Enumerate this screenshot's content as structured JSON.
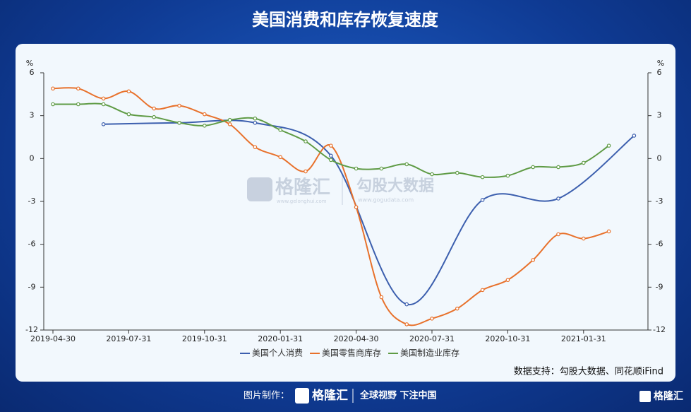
{
  "header": {
    "title": "美国消费和库存恢复速度"
  },
  "chart_data": {
    "type": "line",
    "categories": [
      "2019-04-30",
      null,
      null,
      "2019-07-31",
      null,
      null,
      "2019-10-31",
      null,
      null,
      "2020-01-31",
      null,
      null,
      "2020-04-30",
      null,
      null,
      "2020-07-31",
      null,
      null,
      "2020-10-31",
      null,
      null,
      "2021-01-31",
      null,
      null
    ],
    "series": [
      {
        "name": "美国个人消费",
        "color": "#3c5fae",
        "connect_nulls": true,
        "values": [
          null,
          null,
          2.4,
          null,
          null,
          2.5,
          null,
          null,
          2.5,
          null,
          null,
          0.2,
          null,
          null,
          -10.2,
          null,
          null,
          -2.9,
          null,
          null,
          -2.8,
          null,
          null,
          1.6
        ]
      },
      {
        "name": "美国零售商库存",
        "color": "#e8712b",
        "values": [
          4.9,
          4.9,
          4.2,
          4.7,
          3.5,
          3.7,
          3.1,
          2.4,
          0.8,
          0.1,
          -0.9,
          0.9,
          -3.4,
          -9.7,
          -11.6,
          -11.2,
          -10.5,
          -9.2,
          -8.5,
          -7.1,
          -5.3,
          -5.6,
          -5.1,
          null
        ]
      },
      {
        "name": "美国制造业库存",
        "color": "#5f9b45",
        "values": [
          3.8,
          3.8,
          3.8,
          3.1,
          2.9,
          2.5,
          2.3,
          2.7,
          2.8,
          2.0,
          1.2,
          -0.1,
          -0.7,
          -0.7,
          -0.4,
          -1.1,
          -1.0,
          -1.3,
          -1.2,
          -0.6,
          -0.6,
          -0.3,
          0.9,
          null
        ]
      }
    ],
    "ylim": [
      -12,
      6
    ],
    "yticks": [
      -12,
      -9,
      -6,
      -3,
      0,
      3,
      6
    ],
    "yunit": "%",
    "y2lim": [
      -12,
      6
    ],
    "y2ticks": [
      -12,
      -9,
      -6,
      -3,
      0,
      3,
      6
    ],
    "y2unit": "%",
    "grid": false,
    "smooth": true,
    "legend": "bottom",
    "source": "数据支持：勾股大数据、同花顺iFind"
  },
  "watermark": {
    "brand": "格隆汇",
    "brand_url": "www.gelonghui.com",
    "data_brand": "勾股大数据",
    "data_url": "www.gogudata.com"
  },
  "footer": {
    "made_by": "图片制作：",
    "brand": "格隆汇",
    "slogan": "全球视野 下注中国",
    "corner_brand": "格隆汇"
  }
}
